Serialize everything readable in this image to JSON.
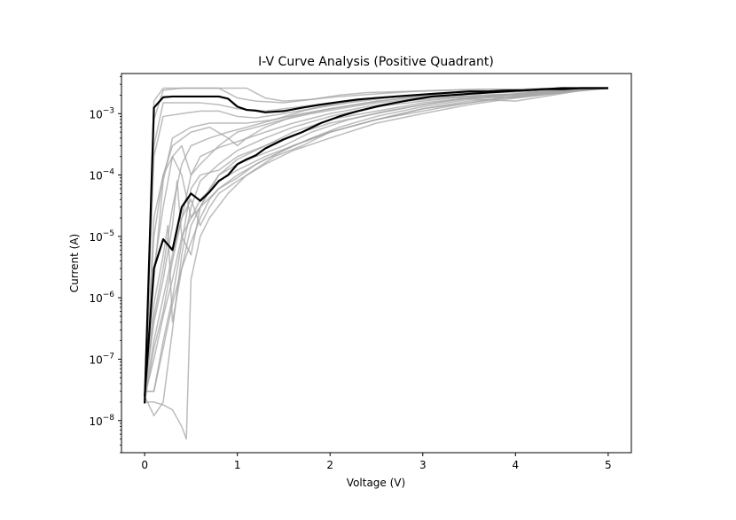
{
  "chart_data": {
    "type": "line",
    "title": "I-V Curve Analysis (Positive Quadrant)",
    "xlabel": "Voltage (V)",
    "ylabel": "Current (A)",
    "xlim": [
      -0.25,
      5.25
    ],
    "ylim": [
      3e-09,
      0.0045
    ],
    "yscale": "log",
    "x_ticks": [
      0,
      1,
      2,
      3,
      4,
      5
    ],
    "x_tick_labels": [
      "0",
      "1",
      "2",
      "3",
      "4",
      "5"
    ],
    "y_ticks": [
      1e-08,
      1e-07,
      1e-06,
      1e-05,
      0.0001,
      0.001
    ],
    "y_tick_labels": [
      {
        "base": "10",
        "exp": "−8"
      },
      {
        "base": "10",
        "exp": "−7"
      },
      {
        "base": "10",
        "exp": "−6"
      },
      {
        "base": "10",
        "exp": "−5"
      },
      {
        "base": "10",
        "exp": "−4"
      },
      {
        "base": "10",
        "exp": "−3"
      }
    ],
    "grid": false,
    "legend": "none",
    "colors": {
      "highlight": "#000000",
      "background_series": "#a6a6a6"
    },
    "highlight_series": [
      {
        "x": [
          0,
          0.1,
          0.2,
          0.3,
          0.4,
          0.5,
          0.6,
          0.7,
          0.8,
          0.9,
          1.0,
          1.1,
          1.2,
          1.3,
          1.5,
          1.7,
          1.9,
          2.1,
          2.3,
          2.5,
          2.7,
          2.9,
          3.1,
          3.3,
          3.5,
          3.7,
          3.9,
          4.1,
          4.3,
          4.5,
          4.7,
          5.0
        ],
        "y": [
          1.9e-08,
          0.00125,
          0.00185,
          0.0019,
          0.0019,
          0.0019,
          0.0019,
          0.0019,
          0.0019,
          0.00175,
          0.0013,
          0.00115,
          0.00112,
          0.00105,
          0.0011,
          0.00125,
          0.0014,
          0.00155,
          0.0017,
          0.0018,
          0.0019,
          0.002,
          0.0021,
          0.0022,
          0.0023,
          0.0023,
          0.00238,
          0.0024,
          0.0025,
          0.0026,
          0.0026,
          0.0026
        ]
      },
      {
        "x": [
          0,
          0.1,
          0.2,
          0.3,
          0.4,
          0.5,
          0.6,
          0.7,
          0.8,
          0.9,
          1.0,
          1.1,
          1.2,
          1.3,
          1.5,
          1.7,
          1.9,
          2.1,
          2.3,
          2.5,
          2.7,
          2.9,
          3.1,
          3.3,
          3.5,
          3.7,
          3.9,
          4.1,
          4.3,
          4.5,
          4.7,
          5.0
        ],
        "y": [
          2.5e-08,
          3e-06,
          9e-06,
          6e-06,
          3e-05,
          5e-05,
          3.8e-05,
          5.3e-05,
          8e-05,
          0.0001,
          0.00015,
          0.00018,
          0.00021,
          0.00027,
          0.00038,
          0.0005,
          0.0007,
          0.0009,
          0.0011,
          0.0013,
          0.0015,
          0.0017,
          0.0019,
          0.002,
          0.0021,
          0.0022,
          0.0023,
          0.0024,
          0.0025,
          0.0025,
          0.0026,
          0.0026
        ]
      }
    ],
    "background_series": [
      {
        "x": [
          0,
          0.1,
          0.2,
          0.3,
          0.4,
          0.5,
          0.7,
          0.9,
          1.1,
          1.3,
          1.5,
          1.8,
          2.1,
          2.4,
          2.8,
          3.2,
          3.6,
          4.0,
          4.5,
          5.0
        ],
        "y": [
          2e-08,
          0.0016,
          0.0026,
          0.0026,
          0.0026,
          0.0026,
          0.0026,
          0.0026,
          0.0026,
          0.0018,
          0.0016,
          0.0017,
          0.002,
          0.0022,
          0.0023,
          0.0024,
          0.0025,
          0.0025,
          0.0026,
          0.0026
        ]
      },
      {
        "x": [
          0,
          0.1,
          0.2,
          0.4,
          0.6,
          0.8,
          1.0,
          1.2,
          1.5,
          1.8,
          2.1,
          2.5,
          2.9,
          3.3,
          3.7,
          4.1,
          4.5,
          5.0
        ],
        "y": [
          2.5e-08,
          0.0008,
          0.0024,
          0.0026,
          0.0026,
          0.0026,
          0.0018,
          0.0016,
          0.0015,
          0.0017,
          0.0019,
          0.0021,
          0.0023,
          0.0024,
          0.0025,
          0.0025,
          0.0026,
          0.0026
        ]
      },
      {
        "x": [
          0,
          0.1,
          0.2,
          0.4,
          0.6,
          0.8,
          1.0,
          1.3,
          1.6,
          2.0,
          2.4,
          2.8,
          3.2,
          3.6,
          4.0,
          4.5,
          5.0
        ],
        "y": [
          3e-08,
          0.0003,
          0.0015,
          0.0015,
          0.0015,
          0.0014,
          0.0012,
          0.0011,
          0.00125,
          0.0015,
          0.0017,
          0.0019,
          0.0021,
          0.0023,
          0.0024,
          0.0025,
          0.0026
        ]
      },
      {
        "x": [
          0,
          0.1,
          0.2,
          0.4,
          0.6,
          0.8,
          1.0,
          1.2,
          1.5,
          1.8,
          2.2,
          2.6,
          3.0,
          3.4,
          3.8,
          4.2,
          4.6,
          5.0
        ],
        "y": [
          3e-08,
          0.0002,
          0.0009,
          0.001,
          0.0011,
          0.0011,
          0.0009,
          0.00085,
          0.001,
          0.0012,
          0.0015,
          0.0018,
          0.002,
          0.0022,
          0.0022,
          0.0023,
          0.0025,
          0.0026
        ]
      },
      {
        "x": [
          0,
          0.1,
          0.2,
          0.3,
          0.5,
          0.7,
          0.9,
          1.1,
          1.4,
          1.7,
          2.0,
          2.4,
          2.8,
          3.2,
          3.6,
          4.0,
          4.4,
          4.8,
          5.0
        ],
        "y": [
          3e-08,
          2e-06,
          8e-05,
          0.0004,
          0.0006,
          0.0007,
          0.0007,
          0.0007,
          0.0008,
          0.001,
          0.0012,
          0.0015,
          0.0018,
          0.002,
          0.0019,
          0.0018,
          0.0021,
          0.0025,
          0.0026
        ]
      },
      {
        "x": [
          0,
          0.1,
          0.2,
          0.3,
          0.4,
          0.5,
          0.7,
          0.9,
          1.1,
          1.4,
          1.7,
          2.0,
          2.4,
          2.8,
          3.2,
          3.6,
          4.0,
          4.4,
          4.8,
          5.0
        ],
        "y": [
          2.5e-08,
          5e-07,
          3e-06,
          3e-05,
          0.00015,
          0.0003,
          0.0004,
          0.0005,
          0.0006,
          0.0008,
          0.0011,
          0.0014,
          0.0017,
          0.0019,
          0.0019,
          0.0017,
          0.0016,
          0.002,
          0.0025,
          0.0026
        ]
      },
      {
        "x": [
          0,
          0.1,
          0.2,
          0.3,
          0.4,
          0.5,
          0.6,
          0.8,
          1.0,
          1.3,
          1.6,
          2.0,
          2.4,
          2.8,
          3.2,
          3.6,
          4.0,
          4.5,
          5.0
        ],
        "y": [
          2e-08,
          1.5e-07,
          6e-07,
          4e-06,
          2e-05,
          0.0001,
          0.0002,
          0.00028,
          0.00035,
          0.0005,
          0.0007,
          0.001,
          0.0013,
          0.0016,
          0.0018,
          0.002,
          0.0021,
          0.0023,
          0.0026
        ]
      },
      {
        "x": [
          0,
          0.1,
          0.2,
          0.3,
          0.4,
          0.5,
          0.6,
          0.8,
          1.0,
          1.3,
          1.6,
          2.0,
          2.5,
          3.0,
          3.5,
          4.0,
          4.5,
          5.0
        ],
        "y": [
          2.5e-08,
          1.2e-08,
          2e-08,
          3e-07,
          5e-06,
          3e-05,
          8e-05,
          0.00015,
          0.00025,
          0.0004,
          0.0006,
          0.0009,
          0.0013,
          0.0016,
          0.0019,
          0.0021,
          0.0024,
          0.0026
        ]
      },
      {
        "x": [
          0,
          0.1,
          0.2,
          0.3,
          0.4,
          0.5,
          0.6,
          0.8,
          1.0,
          1.3,
          1.6,
          2.0,
          2.5,
          3.0,
          3.5,
          4.0,
          4.5,
          5.0
        ],
        "y": [
          3e-08,
          3e-08,
          2e-07,
          1e-06,
          8e-06,
          6e-05,
          0.0001,
          0.00012,
          0.0002,
          0.0003,
          0.00045,
          0.0007,
          0.001,
          0.0014,
          0.0018,
          0.0021,
          0.0024,
          0.0026
        ]
      },
      {
        "x": [
          0,
          0.1,
          0.2,
          0.3,
          0.4,
          0.45,
          0.5,
          0.6,
          0.7,
          0.9,
          1.1,
          1.4,
          1.7,
          2.0,
          2.5,
          3.0,
          3.5,
          4.0,
          4.5,
          5.0
        ],
        "y": [
          2e-08,
          2e-08,
          1.8e-08,
          1.5e-08,
          8e-09,
          5e-09,
          2e-06,
          1e-05,
          2e-05,
          5e-05,
          0.0001,
          0.0002,
          0.0003,
          0.0005,
          0.0008,
          0.0012,
          0.0016,
          0.0019,
          0.0022,
          0.0026
        ]
      },
      {
        "x": [
          0,
          0.1,
          0.2,
          0.3,
          0.4,
          0.5,
          0.6,
          0.7,
          0.8,
          1.0,
          1.2,
          1.5,
          1.8,
          2.1,
          2.5,
          3.0,
          3.5,
          4.0,
          4.5,
          5.0
        ],
        "y": [
          3e-08,
          3e-08,
          1.5e-07,
          8e-07,
          3e-06,
          8e-06,
          2e-05,
          4e-05,
          6e-05,
          9e-05,
          0.00015,
          0.00025,
          0.0004,
          0.0006,
          0.0009,
          0.0013,
          0.0017,
          0.002,
          0.0023,
          0.0026
        ]
      },
      {
        "x": [
          0,
          0.1,
          0.2,
          0.3,
          0.4,
          0.5,
          0.6,
          0.8,
          1.0,
          1.3,
          1.6,
          2.0,
          2.5,
          3.0,
          3.5,
          4.0,
          4.5,
          5.0
        ],
        "y": [
          2.5e-08,
          1e-07,
          5e-07,
          2e-06,
          1e-05,
          5e-06,
          3e-05,
          0.0001,
          0.00018,
          0.0003,
          0.0005,
          0.0008,
          0.0011,
          0.0015,
          0.0018,
          0.002,
          0.0023,
          0.0026
        ]
      },
      {
        "x": [
          0,
          0.1,
          0.2,
          0.3,
          0.35,
          0.4,
          0.5,
          0.6,
          0.8,
          1.0,
          1.3,
          1.6,
          2.0,
          2.5,
          3.0,
          3.5,
          4.0,
          4.5,
          5.0
        ],
        "y": [
          3e-08,
          4e-07,
          2e-06,
          1.5e-05,
          8e-05,
          1e-05,
          2e-05,
          4e-05,
          8e-05,
          0.00012,
          0.0002,
          0.0003,
          0.0005,
          0.0008,
          0.0011,
          0.0015,
          0.0019,
          0.0023,
          0.0026
        ]
      },
      {
        "x": [
          0,
          0.1,
          0.2,
          0.25,
          0.3,
          0.4,
          0.5,
          0.6,
          0.8,
          1.0,
          1.3,
          1.6,
          2.0,
          2.5,
          3.0,
          3.5,
          4.0,
          4.5,
          5.0
        ],
        "y": [
          2.5e-08,
          8e-07,
          5e-06,
          1.5e-05,
          4e-07,
          3e-06,
          1.5e-05,
          3e-05,
          6e-05,
          0.0001,
          0.00018,
          0.0003,
          0.0005,
          0.0008,
          0.0012,
          0.0015,
          0.0019,
          0.0023,
          0.0026
        ]
      },
      {
        "x": [
          0,
          0.1,
          0.2,
          0.3,
          0.4,
          0.5,
          0.6,
          0.7,
          0.8,
          1.0,
          1.2,
          1.5,
          1.8,
          2.2,
          2.6,
          3.0,
          3.5,
          4.0,
          4.5,
          5.0
        ],
        "y": [
          2e-08,
          2e-05,
          0.0001,
          0.0002,
          0.0001,
          2e-05,
          3e-05,
          6e-05,
          0.0001,
          0.00015,
          0.0002,
          0.0003,
          0.0005,
          0.0008,
          0.0011,
          0.0014,
          0.0018,
          0.0021,
          0.0024,
          0.0026
        ]
      },
      {
        "x": [
          0,
          0.1,
          0.2,
          0.3,
          0.5,
          0.7,
          0.9,
          1.0,
          1.1,
          1.3,
          1.6,
          2.0,
          2.5,
          3.0,
          3.5,
          4.0,
          4.5,
          5.0
        ],
        "y": [
          3e-08,
          1e-05,
          0.0001,
          0.0003,
          0.0005,
          0.0006,
          0.0004,
          0.0003,
          0.0004,
          0.0006,
          0.0009,
          0.0012,
          0.0016,
          0.0019,
          0.0021,
          0.0023,
          0.0025,
          0.0026
        ]
      },
      {
        "x": [
          0,
          0.1,
          0.2,
          0.3,
          0.4,
          0.5,
          0.6,
          0.8,
          1.0,
          1.2,
          1.5,
          1.8,
          2.1,
          2.5,
          3.0,
          3.5,
          4.0,
          4.5,
          5.0
        ],
        "y": [
          2e-08,
          3e-06,
          3e-05,
          0.0002,
          0.0003,
          0.0001,
          0.00015,
          0.0003,
          0.0005,
          0.0006,
          0.0008,
          0.001,
          0.0012,
          0.0015,
          0.0018,
          0.0021,
          0.0023,
          0.0025,
          0.0026
        ]
      },
      {
        "x": [
          0,
          0.1,
          0.2,
          0.3,
          0.4,
          0.5,
          0.6,
          0.7,
          0.8,
          1.0,
          1.3,
          1.6,
          2.0,
          2.5,
          3.0,
          3.5,
          4.0,
          4.5,
          5.0
        ],
        "y": [
          2.5e-08,
          2e-07,
          1e-06,
          5e-06,
          2e-05,
          4e-05,
          1.5e-05,
          3e-05,
          5e-05,
          8e-05,
          0.00015,
          0.00025,
          0.0004,
          0.0007,
          0.001,
          0.0014,
          0.0018,
          0.0022,
          0.0026
        ]
      }
    ]
  }
}
